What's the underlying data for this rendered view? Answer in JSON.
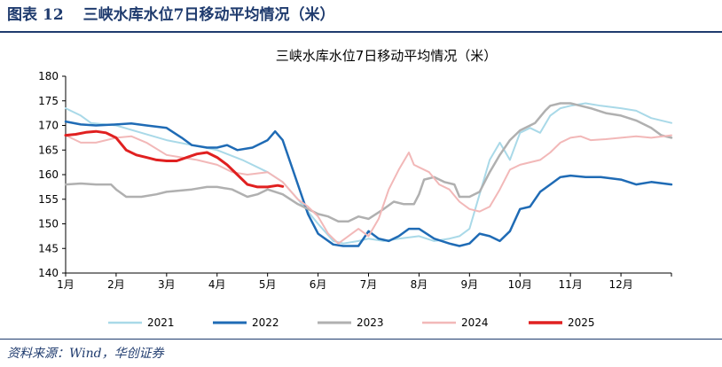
{
  "header": {
    "prefix": "图表",
    "number": "12",
    "text": "三峡水库水位7日移动平均情况（米）"
  },
  "source": "资料来源：Wind，华创证券",
  "chart_data": {
    "type": "line",
    "title": "三峡水库水位7日移动平均情况（米）",
    "xlabel": "",
    "ylabel": "",
    "x_ticks": [
      "1月",
      "2月",
      "3月",
      "4月",
      "5月",
      "6月",
      "7月",
      "8月",
      "9月",
      "10月",
      "11月",
      "12月"
    ],
    "y_ticks": [
      140,
      145,
      150,
      155,
      160,
      165,
      170,
      175,
      180
    ],
    "ylim": [
      140,
      180
    ],
    "xlim_months": [
      1,
      13
    ],
    "grid": false,
    "legend_position": "bottom",
    "series": [
      {
        "name": "2021",
        "color": "#a9d9e8",
        "width": 2,
        "x": [
          1.0,
          1.3,
          1.5,
          2.0,
          2.5,
          3.0,
          3.5,
          4.0,
          4.5,
          5.0,
          5.3,
          5.6,
          6.0,
          6.3,
          6.5,
          6.8,
          7.0,
          7.3,
          7.6,
          8.0,
          8.3,
          8.6,
          8.8,
          9.0,
          9.2,
          9.4,
          9.6,
          9.8,
          10.0,
          10.2,
          10.4,
          10.6,
          10.8,
          11.0,
          11.3,
          11.6,
          12.0,
          12.3,
          12.6,
          13.0
        ],
        "y": [
          173.5,
          172.0,
          170.5,
          170.0,
          168.5,
          167.0,
          166.0,
          165.0,
          163.0,
          160.5,
          158.5,
          155.0,
          150.0,
          146.5,
          146.0,
          146.5,
          147.0,
          146.5,
          147.0,
          147.5,
          146.5,
          147.0,
          147.5,
          149.0,
          156.0,
          163.0,
          166.5,
          163.0,
          168.5,
          169.5,
          168.5,
          172.0,
          173.5,
          174.0,
          174.5,
          174.0,
          173.5,
          173.0,
          171.5,
          170.5
        ]
      },
      {
        "name": "2022",
        "color": "#1f6bb5",
        "width": 2.5,
        "x": [
          1.0,
          1.3,
          1.6,
          2.0,
          2.3,
          2.6,
          3.0,
          3.3,
          3.5,
          3.8,
          4.0,
          4.2,
          4.4,
          4.7,
          5.0,
          5.15,
          5.3,
          5.5,
          5.8,
          6.0,
          6.3,
          6.5,
          6.8,
          7.0,
          7.2,
          7.4,
          7.6,
          7.8,
          8.0,
          8.3,
          8.6,
          8.8,
          9.0,
          9.2,
          9.4,
          9.6,
          9.8,
          10.0,
          10.2,
          10.4,
          10.6,
          10.8,
          11.0,
          11.3,
          11.6,
          12.0,
          12.3,
          12.6,
          13.0
        ],
        "y": [
          170.8,
          170.2,
          170.0,
          170.2,
          170.4,
          170.0,
          169.5,
          167.5,
          166.0,
          165.5,
          165.5,
          166.0,
          165.0,
          165.5,
          167.0,
          168.8,
          167.0,
          161.0,
          152.0,
          148.0,
          145.8,
          145.5,
          145.5,
          148.5,
          147.0,
          146.5,
          147.5,
          149.0,
          149.0,
          147.0,
          146.0,
          145.5,
          146.0,
          148.0,
          147.5,
          146.5,
          148.5,
          153.0,
          153.5,
          156.5,
          158.0,
          159.5,
          159.8,
          159.5,
          159.5,
          159.0,
          158.0,
          158.5,
          158.0
        ]
      },
      {
        "name": "2023",
        "color": "#b0b0b0",
        "width": 2.5,
        "x": [
          1.0,
          1.3,
          1.6,
          1.9,
          2.0,
          2.2,
          2.5,
          2.8,
          3.0,
          3.5,
          3.8,
          4.0,
          4.3,
          4.6,
          4.8,
          5.0,
          5.3,
          5.6,
          5.8,
          6.0,
          6.2,
          6.4,
          6.6,
          6.8,
          7.0,
          7.3,
          7.5,
          7.7,
          7.9,
          8.0,
          8.1,
          8.3,
          8.5,
          8.7,
          8.8,
          9.0,
          9.2,
          9.4,
          9.6,
          9.8,
          10.0,
          10.3,
          10.5,
          10.6,
          10.8,
          11.0,
          11.2,
          11.4,
          11.7,
          12.0,
          12.3,
          12.6,
          12.8,
          13.0
        ],
        "y": [
          158.0,
          158.2,
          158.0,
          158.0,
          157.0,
          155.5,
          155.5,
          156.0,
          156.5,
          157.0,
          157.5,
          157.5,
          157.0,
          155.5,
          156.0,
          157.0,
          156.0,
          154.0,
          153.0,
          152.0,
          151.5,
          150.5,
          150.5,
          151.5,
          151.0,
          153.0,
          154.5,
          154.0,
          154.0,
          156.0,
          159.0,
          159.5,
          158.5,
          158.0,
          155.5,
          155.5,
          156.5,
          160.5,
          164.0,
          167.0,
          169.0,
          170.5,
          173.0,
          174.0,
          174.5,
          174.5,
          174.0,
          173.5,
          172.5,
          172.0,
          171.0,
          169.5,
          168.0,
          167.5
        ]
      },
      {
        "name": "2024",
        "color": "#f2b8b8",
        "width": 2,
        "x": [
          1.0,
          1.3,
          1.6,
          2.0,
          2.3,
          2.6,
          3.0,
          3.3,
          3.6,
          4.0,
          4.3,
          4.6,
          5.0,
          5.3,
          5.6,
          5.8,
          6.0,
          6.2,
          6.4,
          6.6,
          6.8,
          7.0,
          7.2,
          7.4,
          7.6,
          7.8,
          7.9,
          8.0,
          8.2,
          8.4,
          8.6,
          8.8,
          9.0,
          9.2,
          9.4,
          9.6,
          9.8,
          10.0,
          10.2,
          10.4,
          10.6,
          10.8,
          11.0,
          11.2,
          11.4,
          11.7,
          12.0,
          12.3,
          12.6,
          13.0
        ],
        "y": [
          168.0,
          166.5,
          166.5,
          167.5,
          167.8,
          166.5,
          164.0,
          163.5,
          163.0,
          162.0,
          160.5,
          160.0,
          160.5,
          158.5,
          155.0,
          153.5,
          151.5,
          148.0,
          146.0,
          147.5,
          149.0,
          147.5,
          151.0,
          157.0,
          161.0,
          164.5,
          162.0,
          161.5,
          160.5,
          158.0,
          157.0,
          154.5,
          153.0,
          152.5,
          153.5,
          157.0,
          161.0,
          162.0,
          162.5,
          163.0,
          164.5,
          166.5,
          167.5,
          167.8,
          167.0,
          167.2,
          167.5,
          167.8,
          167.5,
          168.0
        ]
      },
      {
        "name": "2025",
        "color": "#e02020",
        "width": 3,
        "x": [
          1.0,
          1.2,
          1.4,
          1.6,
          1.8,
          2.0,
          2.2,
          2.4,
          2.6,
          2.8,
          3.0,
          3.2,
          3.4,
          3.6,
          3.8,
          4.0,
          4.2,
          4.4,
          4.6,
          4.8,
          5.0,
          5.2,
          5.3
        ],
        "y": [
          168.0,
          168.2,
          168.6,
          168.8,
          168.5,
          167.5,
          165.0,
          164.0,
          163.5,
          163.0,
          162.8,
          162.8,
          163.5,
          164.2,
          164.5,
          163.5,
          162.0,
          160.0,
          158.0,
          157.5,
          157.5,
          157.8,
          157.6
        ]
      }
    ]
  }
}
